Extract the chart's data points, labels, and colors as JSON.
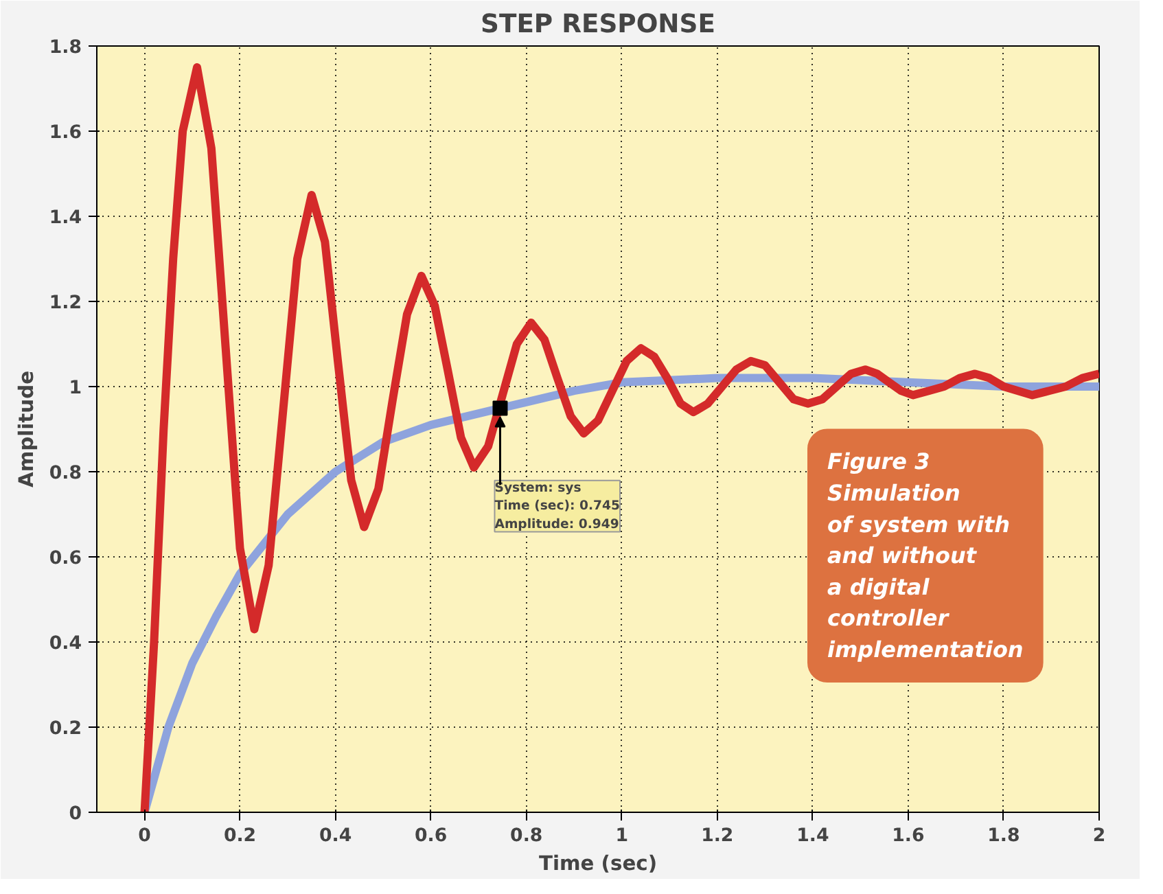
{
  "chart_data": {
    "type": "line",
    "title": "STEP RESPONSE",
    "xlabel": "Time (sec)",
    "ylabel": "Amplitude",
    "xlim": [
      -0.1,
      2
    ],
    "xticks": [
      0,
      0.2,
      0.4,
      0.6,
      0.8,
      1,
      1.2,
      1.4,
      1.6,
      1.8,
      2
    ],
    "ylim": [
      0,
      1.8
    ],
    "yticks": [
      0,
      0.2,
      0.4,
      0.6,
      0.8,
      1,
      1.2,
      1.4,
      1.6,
      1.8
    ],
    "grid": true,
    "line_style": "solid",
    "marker": "none",
    "series": [
      {
        "color": "#8ea3dd",
        "x": [
          0,
          0.05,
          0.1,
          0.15,
          0.2,
          0.3,
          0.4,
          0.5,
          0.6,
          0.745,
          0.9,
          1.0,
          1.2,
          1.4,
          1.6,
          1.8,
          2.0
        ],
        "values": [
          0,
          0.2,
          0.35,
          0.46,
          0.56,
          0.7,
          0.8,
          0.87,
          0.91,
          0.949,
          0.99,
          1.01,
          1.02,
          1.02,
          1.01,
          1.0,
          1.0
        ]
      },
      {
        "color": "#d42a2a",
        "x": [
          0,
          0.02,
          0.04,
          0.06,
          0.08,
          0.11,
          0.14,
          0.17,
          0.2,
          0.23,
          0.26,
          0.29,
          0.32,
          0.35,
          0.378,
          0.405,
          0.433,
          0.46,
          0.49,
          0.52,
          0.55,
          0.58,
          0.608,
          0.635,
          0.663,
          0.69,
          0.72,
          0.75,
          0.78,
          0.81,
          0.838,
          0.865,
          0.893,
          0.92,
          0.95,
          0.98,
          1.01,
          1.04,
          1.068,
          1.095,
          1.123,
          1.15,
          1.18,
          1.21,
          1.24,
          1.27,
          1.3,
          1.33,
          1.36,
          1.39,
          1.42,
          1.45,
          1.48,
          1.51,
          1.535,
          1.56,
          1.585,
          1.61,
          1.643,
          1.675,
          1.708,
          1.74,
          1.77,
          1.8,
          1.83,
          1.86,
          1.895,
          1.93,
          1.965,
          2.0
        ],
        "values": [
          0,
          0.4,
          0.9,
          1.3,
          1.6,
          1.75,
          1.56,
          1.09,
          0.62,
          0.43,
          0.58,
          0.94,
          1.3,
          1.45,
          1.34,
          1.06,
          0.78,
          0.67,
          0.76,
          0.97,
          1.17,
          1.26,
          1.19,
          1.04,
          0.88,
          0.81,
          0.86,
          0.98,
          1.1,
          1.15,
          1.11,
          1.02,
          0.93,
          0.89,
          0.92,
          0.99,
          1.06,
          1.09,
          1.07,
          1.02,
          0.96,
          0.94,
          0.96,
          1.0,
          1.04,
          1.06,
          1.05,
          1.01,
          0.97,
          0.96,
          0.97,
          1.0,
          1.03,
          1.04,
          1.03,
          1.01,
          0.99,
          0.98,
          0.99,
          1.0,
          1.02,
          1.03,
          1.02,
          1.0,
          0.99,
          0.98,
          0.99,
          1.0,
          1.02,
          1.03
        ]
      }
    ],
    "annotations": [
      {
        "text": "System: sys\nTime (sec): 0.745\nAmplitude: 0.949",
        "x": 0.745,
        "y": 0.949
      },
      "Figure 3\nSimulation\nof system with\nand without\na digital\ncontroller\nimplementation"
    ]
  }
}
